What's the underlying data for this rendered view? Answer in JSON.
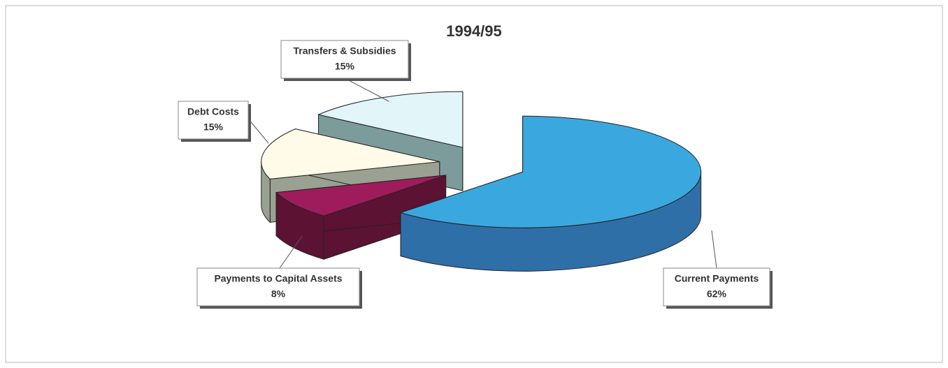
{
  "chart_data": {
    "type": "pie",
    "title": "1994/95",
    "categories": [
      "Current Payments",
      "Payments to Capital Assets",
      "Debt Costs",
      "Transfers & Subsidies"
    ],
    "values": [
      62,
      8,
      15,
      15
    ],
    "value_labels": [
      "62%",
      "8%",
      "15%",
      "15%"
    ],
    "colors": [
      "#3aa8de",
      "#9e1c5c",
      "#fffbe8",
      "#e2f5f9"
    ],
    "side_colors": [
      "#2f6fa8",
      "#5c1233",
      "#9aa092",
      "#7c9c9c"
    ]
  }
}
